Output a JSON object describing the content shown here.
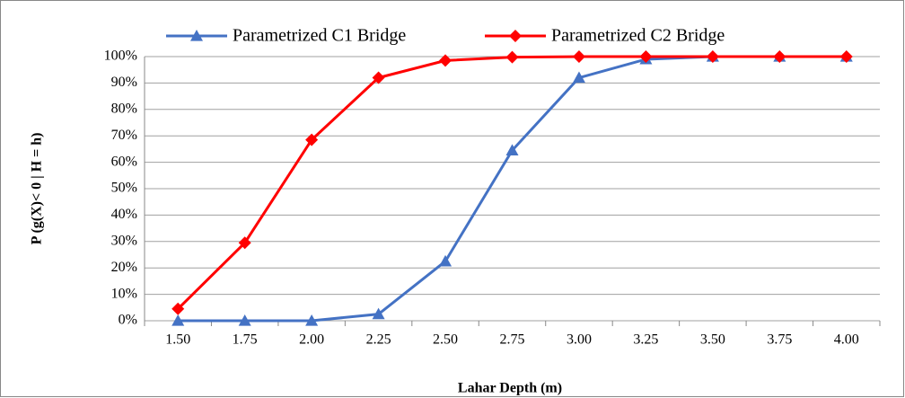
{
  "chart_data": {
    "type": "line",
    "x_label": "Lahar Depth (m)",
    "y_label": "P (g(X)< 0 | H = h)",
    "categories": [
      "1.50",
      "1.75",
      "2.00",
      "2.25",
      "2.50",
      "2.75",
      "3.00",
      "3.25",
      "3.50",
      "3.75",
      "4.00"
    ],
    "series": [
      {
        "name": "Parametrized C1 Bridge",
        "color": "#4472c4",
        "marker": "triangle",
        "values": [
          0,
          0,
          0,
          2.5,
          22.5,
          64.5,
          92,
          99,
          100,
          100,
          100
        ]
      },
      {
        "name": "Parametrized C2 Bridge",
        "color": "#ff0000",
        "marker": "diamond",
        "values": [
          4.5,
          29.5,
          68.5,
          92,
          98.5,
          99.8,
          100,
          100,
          100,
          100,
          100
        ]
      }
    ],
    "ylim": [
      0,
      100
    ],
    "yticks": [
      {
        "value": 0,
        "label": "0%"
      },
      {
        "value": 10,
        "label": "10%"
      },
      {
        "value": 20,
        "label": "20%"
      },
      {
        "value": 30,
        "label": "30%"
      },
      {
        "value": 40,
        "label": "40%"
      },
      {
        "value": 50,
        "label": "50%"
      },
      {
        "value": 60,
        "label": "60%"
      },
      {
        "value": 70,
        "label": "70%"
      },
      {
        "value": 80,
        "label": "80%"
      },
      {
        "value": 90,
        "label": "90%"
      },
      {
        "value": 100,
        "label": "100%"
      }
    ],
    "grid": true,
    "legend": "top"
  }
}
